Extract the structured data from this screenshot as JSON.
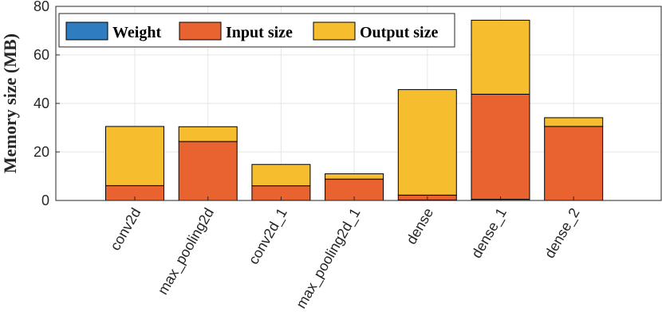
{
  "chart_data": {
    "type": "bar",
    "stacked": true,
    "title": "",
    "xlabel": "",
    "ylabel": "Memory size (MB)",
    "ylim": [
      0,
      80
    ],
    "yticks": [
      0,
      20,
      40,
      60,
      80
    ],
    "grid": true,
    "legend_position": "top-left",
    "categories": [
      "conv2d",
      "max_pooling2d",
      "conv2d_1",
      "max_pooling2d_1",
      "dense",
      "dense_1",
      "dense_2"
    ],
    "series": [
      {
        "name": "Weight",
        "color": "#2f7cc0",
        "values": [
          0.01,
          0.0,
          0.04,
          0.0,
          0.2,
          0.5,
          0.02
        ]
      },
      {
        "name": "Input size",
        "color": "#e8632f",
        "values": [
          6.1,
          24.3,
          6.0,
          8.8,
          2.0,
          43.3,
          30.5
        ]
      },
      {
        "name": "Output size",
        "color": "#f6bd2e",
        "values": [
          24.4,
          6.1,
          8.8,
          2.2,
          43.5,
          30.5,
          3.6
        ]
      }
    ]
  }
}
